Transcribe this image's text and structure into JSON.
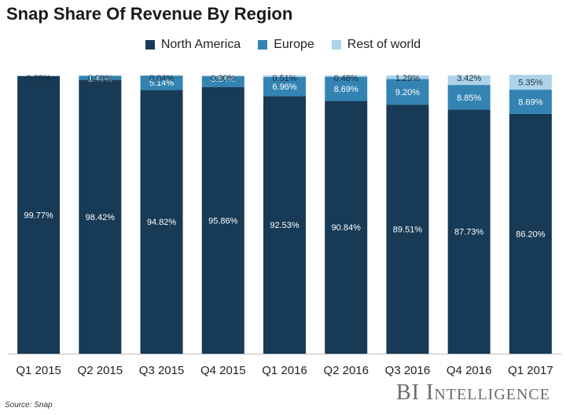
{
  "title": "Snap Share Of Revenue By Region",
  "source": "Source: Snap",
  "brand": "BI Intelligence",
  "colors": {
    "north_america": "#173a56",
    "europe": "#3384b3",
    "rest_of_world": "#acd3ea",
    "axis": "#bfbfbf"
  },
  "chart_data": {
    "type": "bar",
    "stacked": true,
    "title": "Snap Share Of Revenue By Region",
    "xlabel": "",
    "ylabel": "",
    "ylim": [
      0,
      100
    ],
    "grid": false,
    "legend_position": "top",
    "categories": [
      "Q1 2015",
      "Q2 2015",
      "Q3 2015",
      "Q4 2015",
      "Q1 2016",
      "Q2 2016",
      "Q3 2016",
      "Q4 2016",
      "Q1 2017"
    ],
    "series": [
      {
        "name": "North America",
        "color": "#173a56",
        "values": [
          99.77,
          98.42,
          94.82,
          95.86,
          92.53,
          90.84,
          89.51,
          87.73,
          86.2
        ],
        "labels": [
          "99.77%",
          "98.42%",
          "94.82%",
          "95.86%",
          "92.53%",
          "90.84%",
          "89.51%",
          "87.73%",
          "86.20%"
        ]
      },
      {
        "name": "Europe",
        "color": "#3384b3",
        "values": [
          0,
          1.49,
          5.14,
          3.84,
          6.96,
          8.69,
          9.2,
          8.85,
          8.69
        ],
        "labels": [
          "",
          "1.49%",
          "5.14%",
          "3.84%",
          "6.96%",
          "8.69%",
          "9.20%",
          "8.85%",
          "8.69%"
        ]
      },
      {
        "name": "Rest of world",
        "color": "#acd3ea",
        "values": [
          0.23,
          0.09,
          0.04,
          0.3,
          0.51,
          0.48,
          1.29,
          3.42,
          5.35
        ],
        "labels": [
          "0.23%",
          "0.09%",
          "0.04%",
          "0.30%",
          "0.51%",
          "0.48%",
          "1.29%",
          "3.42%",
          "5.35%"
        ]
      }
    ]
  }
}
